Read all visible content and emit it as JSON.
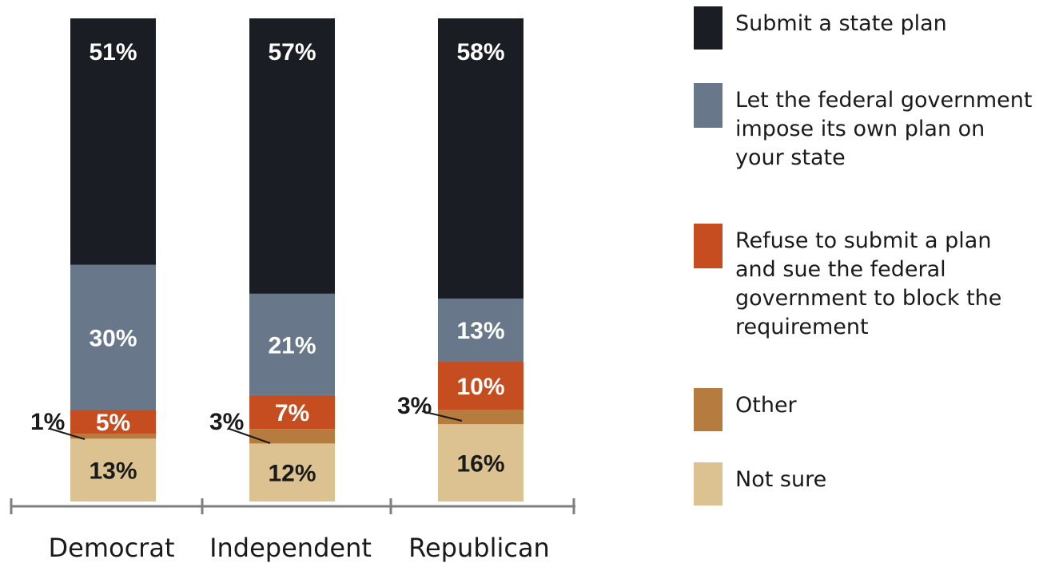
{
  "chart_data": {
    "type": "bar",
    "stacked": true,
    "categories": [
      "Democrat",
      "Independent",
      "Republican"
    ],
    "series": [
      {
        "name": "Not sure",
        "values": [
          13,
          12,
          16
        ],
        "color": "#dcc291",
        "labels": [
          "13%",
          "12%",
          "16%"
        ]
      },
      {
        "name": "Other",
        "values": [
          1,
          3,
          3
        ],
        "color": "#b67b3f",
        "labels": [
          "1%",
          "3%",
          "3%"
        ]
      },
      {
        "name": "Refuse to submit a plan and sue the federal government to block the requirement",
        "values": [
          5,
          7,
          10
        ],
        "color": "#c64d1f",
        "labels": [
          "5%",
          "7%",
          "10%"
        ]
      },
      {
        "name": "Let the federal government impose its own plan on your state",
        "values": [
          30,
          21,
          13
        ],
        "color": "#68788a",
        "labels": [
          "30%",
          "21%",
          "13%"
        ]
      },
      {
        "name": "Submit a state plan",
        "values": [
          51,
          57,
          58
        ],
        "color": "#1a1d23",
        "labels": [
          "51%",
          "57%",
          "58%"
        ]
      }
    ],
    "legend": {
      "position": "right",
      "entries": [
        {
          "series": 4,
          "lines": [
            "Submit a state plan"
          ]
        },
        {
          "series": 3,
          "lines": [
            "Let the federal government",
            "impose its own plan on",
            "your state"
          ]
        },
        {
          "series": 2,
          "lines": [
            "Refuse to submit a plan",
            "and sue the federal",
            "government to block the",
            "requirement"
          ]
        },
        {
          "series": 1,
          "lines": [
            "Other"
          ]
        },
        {
          "series": 0,
          "lines": [
            "Not sure"
          ]
        }
      ]
    },
    "title": "",
    "xlabel": "",
    "ylabel": "",
    "ylim": [
      0,
      100
    ],
    "grid": false
  }
}
